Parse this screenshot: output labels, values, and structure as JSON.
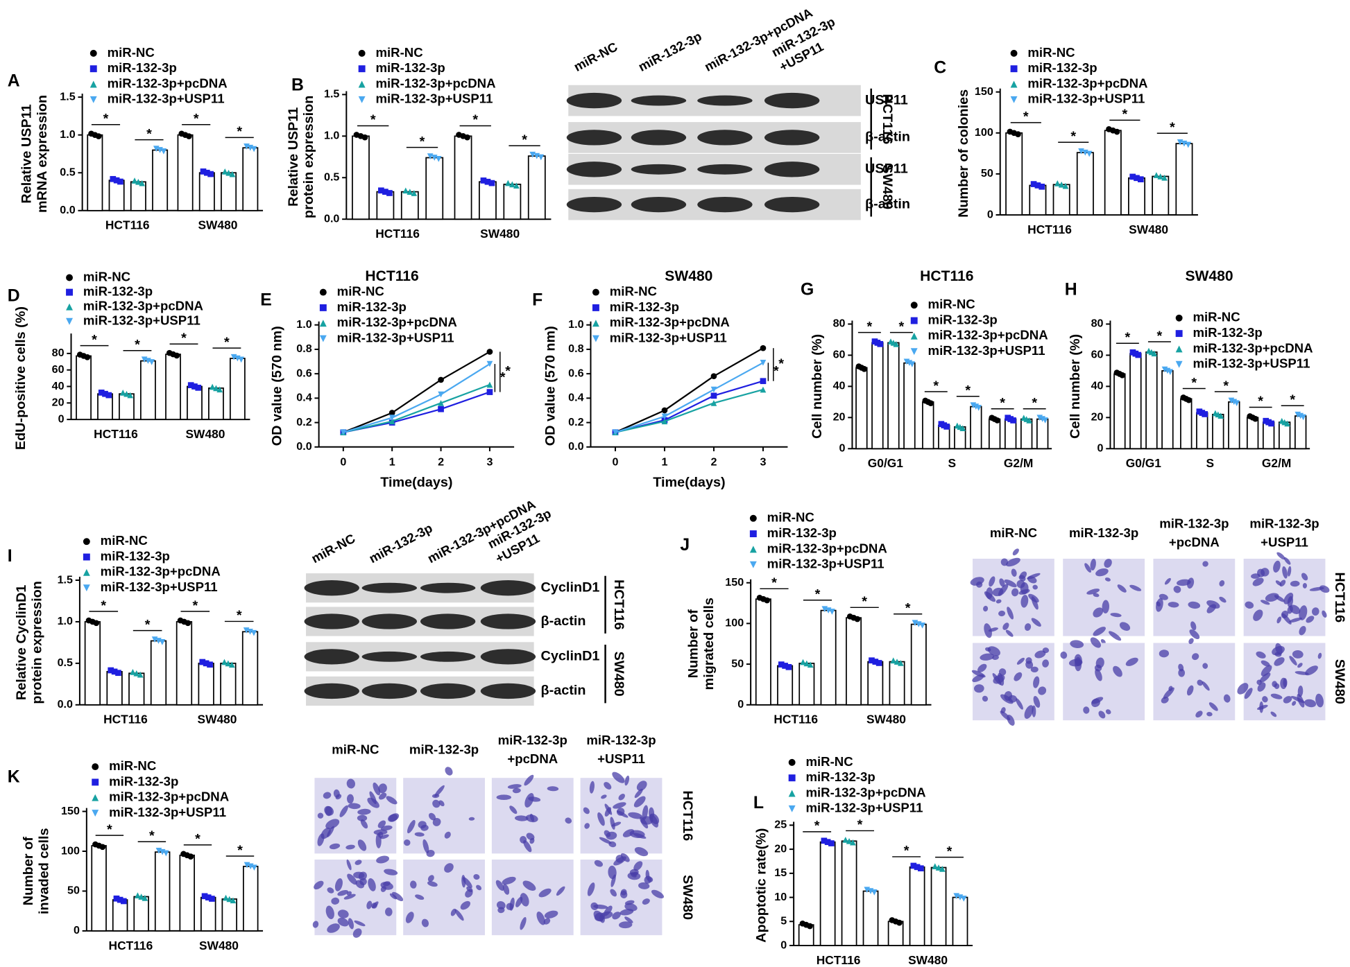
{
  "chart_data": [
    {
      "type": "bar",
      "label": "A",
      "ylabel": [
        "Relative USP11",
        "mRNA expression"
      ],
      "categories": [
        "HCT116",
        "SW480"
      ],
      "series": [
        {
          "name": "miR-NC",
          "color": "#000000",
          "marker": "circle",
          "values": [
            1.0,
            1.0
          ]
        },
        {
          "name": "miR-132-3p",
          "color": "#1f1fe0",
          "marker": "square",
          "values": [
            0.4,
            0.5
          ]
        },
        {
          "name": "miR-132-3p+pcDNA",
          "color": "#17a2a2",
          "marker": "triangle-up",
          "values": [
            0.38,
            0.5
          ]
        },
        {
          "name": "miR-132-3p+USP11",
          "color": "#4aa8f0",
          "marker": "triangle-down",
          "values": [
            0.8,
            0.83
          ]
        }
      ],
      "ylim": [
        0,
        1.5
      ],
      "yticks": [
        {
          "value": 0,
          "label": "0.0"
        },
        0.5,
        {
          "value": 1,
          "label": "1.0"
        },
        1.5
      ],
      "annotation": "*"
    },
    {
      "type": "bar",
      "label": "B",
      "ylabel": [
        "Relative USP11",
        "protein expression"
      ],
      "categories": [
        "HCT116",
        "SW480"
      ],
      "series": [
        {
          "name": "miR-NC",
          "color": "#000000",
          "marker": "circle",
          "values": [
            1.0,
            1.0
          ]
        },
        {
          "name": "miR-132-3p",
          "color": "#1f1fe0",
          "marker": "square",
          "values": [
            0.33,
            0.45
          ]
        },
        {
          "name": "miR-132-3p+pcDNA",
          "color": "#17a2a2",
          "marker": "triangle-up",
          "values": [
            0.33,
            0.42
          ]
        },
        {
          "name": "miR-132-3p+USP11",
          "color": "#4aa8f0",
          "marker": "triangle-down",
          "values": [
            0.74,
            0.76
          ]
        }
      ],
      "ylim": [
        0,
        1.5
      ],
      "yticks": [
        {
          "value": 0,
          "label": "0.0"
        },
        0.5,
        {
          "value": 1,
          "label": "1.0"
        },
        1.5
      ],
      "annotation": "*"
    },
    {
      "type": "bar",
      "label": "C",
      "ylabel": "Number of colonies",
      "categories": [
        "HCT116",
        "SW480"
      ],
      "series": [
        {
          "name": "miR-NC",
          "color": "#000000",
          "marker": "circle",
          "values": [
            100,
            103
          ]
        },
        {
          "name": "miR-132-3p",
          "color": "#1f1fe0",
          "marker": "square",
          "values": [
            36,
            45
          ]
        },
        {
          "name": "miR-132-3p+pcDNA",
          "color": "#17a2a2",
          "marker": "triangle-up",
          "values": [
            37,
            47
          ]
        },
        {
          "name": "miR-132-3p+USP11",
          "color": "#4aa8f0",
          "marker": "triangle-down",
          "values": [
            76,
            87
          ]
        }
      ],
      "ylim": [
        0,
        150
      ],
      "yticks": [
        0,
        50,
        100,
        150
      ],
      "annotation": "*"
    },
    {
      "type": "bar",
      "label": "D",
      "ylabel": "EdU-positive cells (%)",
      "categories": [
        "HCT116",
        "SW480"
      ],
      "series": [
        {
          "name": "miR-NC",
          "color": "#000000",
          "marker": "circle",
          "values": [
            77,
            79
          ]
        },
        {
          "name": "miR-132-3p",
          "color": "#1f1fe0",
          "marker": "square",
          "values": [
            31,
            40
          ]
        },
        {
          "name": "miR-132-3p+pcDNA",
          "color": "#17a2a2",
          "marker": "triangle-up",
          "values": [
            31,
            38
          ]
        },
        {
          "name": "miR-132-3p+USP11",
          "color": "#4aa8f0",
          "marker": "triangle-down",
          "values": [
            71,
            74
          ]
        }
      ],
      "ylim": [
        0,
        100
      ],
      "yticks": [
        0,
        20,
        40,
        60,
        80
      ],
      "annotation": "*"
    },
    {
      "type": "line",
      "label": "E",
      "title": "HCT116",
      "ylabel": "OD value (570 nm)",
      "xlabel": "Time(days)",
      "x": [
        0,
        1,
        2,
        3
      ],
      "series": [
        {
          "name": "miR-NC",
          "color": "#000000",
          "marker": "circle",
          "values": [
            0.12,
            0.28,
            0.55,
            0.78
          ]
        },
        {
          "name": "miR-132-3p",
          "color": "#1f1fe0",
          "marker": "square",
          "values": [
            0.12,
            0.2,
            0.31,
            0.45
          ]
        },
        {
          "name": "miR-132-3p+pcDNA",
          "color": "#17a2a2",
          "marker": "triangle-up",
          "values": [
            0.12,
            0.21,
            0.36,
            0.51
          ]
        },
        {
          "name": "miR-132-3p+USP11",
          "color": "#4aa8f0",
          "marker": "triangle-down",
          "values": [
            0.12,
            0.24,
            0.43,
            0.68
          ]
        }
      ],
      "xlim": [
        -0.5,
        3.5
      ],
      "xticks": [
        0,
        1,
        2,
        3
      ],
      "ylim": [
        0,
        1.0
      ],
      "yticks": [
        {
          "value": 0,
          "label": "0.0"
        },
        0.2,
        0.4,
        0.6,
        0.8,
        {
          "value": 1,
          "label": "1.0"
        }
      ],
      "annotation": "*"
    },
    {
      "type": "line",
      "label": "F",
      "title": "SW480",
      "ylabel": "OD value (570 nm)",
      "xlabel": "Time(days)",
      "x": [
        0,
        1,
        2,
        3
      ],
      "series": [
        {
          "name": "miR-NC",
          "color": "#000000",
          "marker": "circle",
          "values": [
            0.12,
            0.3,
            0.58,
            0.81
          ]
        },
        {
          "name": "miR-132-3p",
          "color": "#1f1fe0",
          "marker": "square",
          "values": [
            0.12,
            0.22,
            0.42,
            0.54
          ]
        },
        {
          "name": "miR-132-3p+pcDNA",
          "color": "#17a2a2",
          "marker": "triangle-up",
          "values": [
            0.12,
            0.21,
            0.36,
            0.47
          ]
        },
        {
          "name": "miR-132-3p+USP11",
          "color": "#4aa8f0",
          "marker": "triangle-down",
          "values": [
            0.12,
            0.25,
            0.47,
            0.69
          ]
        }
      ],
      "xlim": [
        -0.5,
        3.5
      ],
      "xticks": [
        0,
        1,
        2,
        3
      ],
      "ylim": [
        0,
        1.0
      ],
      "yticks": [
        {
          "value": 0,
          "label": "0.0"
        },
        0.2,
        0.4,
        0.6,
        0.8,
        {
          "value": 1,
          "label": "1.0"
        }
      ],
      "annotation": "*"
    },
    {
      "type": "bar",
      "label": "G",
      "title": "HCT116",
      "ylabel": "Cell number (%)",
      "categories": [
        "G0/G1",
        "S",
        "G2/M"
      ],
      "series": [
        {
          "name": "miR-NC",
          "color": "#000000",
          "marker": "circle",
          "values": [
            52,
            30,
            19
          ]
        },
        {
          "name": "miR-132-3p",
          "color": "#1f1fe0",
          "marker": "square",
          "values": [
            68,
            15,
            19
          ]
        },
        {
          "name": "miR-132-3p+pcDNA",
          "color": "#17a2a2",
          "marker": "triangle-up",
          "values": [
            68,
            14,
            19
          ]
        },
        {
          "name": "miR-132-3p+USP11",
          "color": "#4aa8f0",
          "marker": "triangle-down",
          "values": [
            55,
            27,
            19
          ]
        }
      ],
      "ylim": [
        0,
        80
      ],
      "yticks": [
        0,
        20,
        40,
        60,
        80
      ],
      "annotation": "*"
    },
    {
      "type": "bar",
      "label": "H",
      "title": "SW480",
      "ylabel": "Cell number (%)",
      "categories": [
        "G0/G1",
        "S",
        "G2/M"
      ],
      "series": [
        {
          "name": "miR-NC",
          "color": "#000000",
          "marker": "circle",
          "values": [
            48,
            32,
            20
          ]
        },
        {
          "name": "miR-132-3p",
          "color": "#1f1fe0",
          "marker": "square",
          "values": [
            61,
            23,
            17
          ]
        },
        {
          "name": "miR-132-3p+pcDNA",
          "color": "#17a2a2",
          "marker": "triangle-up",
          "values": [
            62,
            22,
            17
          ]
        },
        {
          "name": "miR-132-3p+USP11",
          "color": "#4aa8f0",
          "marker": "triangle-down",
          "values": [
            50,
            30,
            21
          ]
        }
      ],
      "ylim": [
        0,
        80
      ],
      "yticks": [
        0,
        20,
        40,
        60,
        80
      ],
      "annotation": "*"
    },
    {
      "type": "bar",
      "label": "I",
      "ylabel": [
        "Relative CyclinD1",
        "protein expression"
      ],
      "categories": [
        "HCT116",
        "SW480"
      ],
      "series": [
        {
          "name": "miR-NC",
          "color": "#000000",
          "marker": "circle",
          "values": [
            1.0,
            1.0
          ]
        },
        {
          "name": "miR-132-3p",
          "color": "#1f1fe0",
          "marker": "square",
          "values": [
            0.4,
            0.5
          ]
        },
        {
          "name": "miR-132-3p+pcDNA",
          "color": "#17a2a2",
          "marker": "triangle-up",
          "values": [
            0.38,
            0.5
          ]
        },
        {
          "name": "miR-132-3p+USP11",
          "color": "#4aa8f0",
          "marker": "triangle-down",
          "values": [
            0.77,
            0.88
          ]
        }
      ],
      "ylim": [
        0,
        1.5
      ],
      "yticks": [
        {
          "value": 0,
          "label": "0.0"
        },
        0.5,
        {
          "value": 1,
          "label": "1.0"
        },
        1.5
      ],
      "annotation": "*"
    },
    {
      "type": "bar",
      "label": "J",
      "ylabel": [
        "Number of",
        "migrated cells"
      ],
      "categories": [
        "HCT116",
        "SW480"
      ],
      "series": [
        {
          "name": "miR-NC",
          "color": "#000000",
          "marker": "circle",
          "values": [
            130,
            107
          ]
        },
        {
          "name": "miR-132-3p",
          "color": "#1f1fe0",
          "marker": "square",
          "values": [
            48,
            53
          ]
        },
        {
          "name": "miR-132-3p+pcDNA",
          "color": "#17a2a2",
          "marker": "triangle-up",
          "values": [
            51,
            53
          ]
        },
        {
          "name": "miR-132-3p+USP11",
          "color": "#4aa8f0",
          "marker": "triangle-down",
          "values": [
            116,
            99
          ]
        }
      ],
      "ylim": [
        0,
        150
      ],
      "yticks": [
        0,
        50,
        100,
        150
      ],
      "annotation": "*"
    },
    {
      "type": "bar",
      "label": "K",
      "ylabel": [
        "Number of",
        "invaded cells"
      ],
      "categories": [
        "HCT116",
        "SW480"
      ],
      "series": [
        {
          "name": "miR-NC",
          "color": "#000000",
          "marker": "circle",
          "values": [
            107,
            95
          ]
        },
        {
          "name": "miR-132-3p",
          "color": "#1f1fe0",
          "marker": "square",
          "values": [
            39,
            42
          ]
        },
        {
          "name": "miR-132-3p+pcDNA",
          "color": "#17a2a2",
          "marker": "triangle-up",
          "values": [
            43,
            40
          ]
        },
        {
          "name": "miR-132-3p+USP11",
          "color": "#4aa8f0",
          "marker": "triangle-down",
          "values": [
            99,
            81
          ]
        }
      ],
      "ylim": [
        0,
        150
      ],
      "yticks": [
        0,
        50,
        100,
        150
      ],
      "annotation": "*"
    },
    {
      "type": "bar",
      "label": "L",
      "ylabel": "Apoptotic rate(%)",
      "categories": [
        "HCT116",
        "SW480"
      ],
      "series": [
        {
          "name": "miR-NC",
          "color": "#000000",
          "marker": "circle",
          "values": [
            4.3,
            5
          ]
        },
        {
          "name": "miR-132-3p",
          "color": "#1f1fe0",
          "marker": "square",
          "values": [
            21.5,
            16.3
          ]
        },
        {
          "name": "miR-132-3p+pcDNA",
          "color": "#17a2a2",
          "marker": "triangle-up",
          "values": [
            21.7,
            16.2
          ]
        },
        {
          "name": "miR-132-3p+USP11",
          "color": "#4aa8f0",
          "marker": "triangle-down",
          "values": [
            11.3,
            10
          ]
        }
      ],
      "ylim": [
        0,
        25
      ],
      "yticks": [
        0,
        5,
        10,
        15,
        20,
        25
      ],
      "annotation": "*"
    }
  ],
  "blots": [
    {
      "lanes": [
        "miR-NC",
        "miR-132-3p",
        "miR-132-3p+pcDNA",
        [
          "miR-132-3p",
          "+USP11"
        ]
      ],
      "bands": [
        "USP11",
        "β-actin",
        "USP11",
        "β-actin"
      ],
      "cell_lines": [
        "HCT116",
        "SW480"
      ]
    },
    {
      "lanes": [
        "miR-NC",
        "miR-132-3p",
        "miR-132-3p+pcDNA",
        [
          "miR-132-3p",
          "+USP11"
        ]
      ],
      "bands": [
        "CyclinD1",
        "β-actin",
        "CyclinD1",
        "β-actin"
      ],
      "cell_lines": [
        "HCT116",
        "SW480"
      ]
    }
  ],
  "micrographs": [
    {
      "columns": [
        "miR-NC",
        "miR-132-3p",
        [
          "miR-132-3p",
          "+pcDNA"
        ],
        [
          "miR-132-3p",
          "+USP11"
        ]
      ],
      "rows": [
        "HCT116",
        "SW480"
      ]
    },
    {
      "columns": [
        "miR-NC",
        "miR-132-3p",
        [
          "miR-132-3p",
          "+pcDNA"
        ],
        [
          "miR-132-3p",
          "+USP11"
        ]
      ],
      "rows": [
        "HCT116",
        "SW480"
      ]
    }
  ]
}
